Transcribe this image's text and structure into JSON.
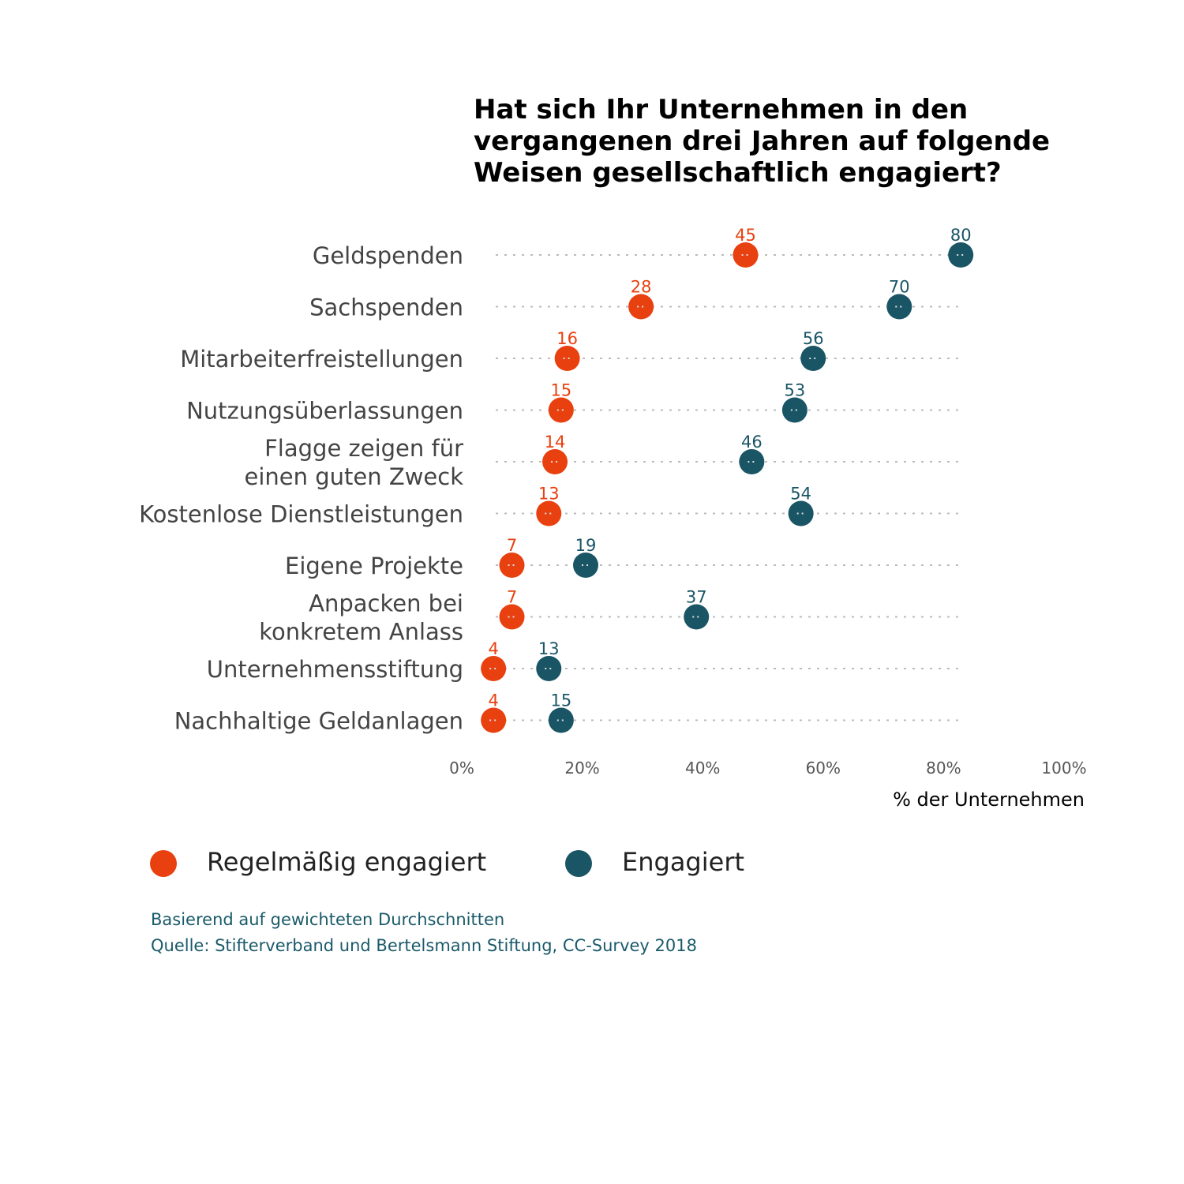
{
  "chart_data": {
    "type": "scatter",
    "subtype": "dot-plot",
    "title": [
      "Hat sich Ihr Unternehmen in den",
      "vergangenen drei Jahren auf folgende",
      "Weisen gesellschaftlich engagiert?"
    ],
    "categories": [
      [
        "Geldspenden"
      ],
      [
        "Sachspenden"
      ],
      [
        "Mitarbeiterfreistellungen"
      ],
      [
        "Nutzungsüberlassungen"
      ],
      [
        "Flagge zeigen für",
        "einen guten Zweck"
      ],
      [
        "Kostenlose Dienstleistungen"
      ],
      [
        "Eigene Projekte"
      ],
      [
        "Anpacken  bei",
        "konkretem Anlass"
      ],
      [
        "Unternehmensstiftung"
      ],
      [
        "Nachhaltige Geldanlagen"
      ]
    ],
    "series": [
      {
        "name": "Regelmäßig engagiert",
        "color": "#e8400f",
        "values": [
          45,
          28,
          16,
          15,
          14,
          13,
          7,
          7,
          4,
          4
        ]
      },
      {
        "name": "Engagiert",
        "color": "#1a5566",
        "values": [
          80,
          70,
          56,
          53,
          46,
          54,
          19,
          37,
          13,
          15
        ]
      }
    ],
    "xlabel": "% der Unternehmen",
    "xlim": [
      0,
      100
    ],
    "xticks": [
      "0%",
      "20%",
      "40%",
      "60%",
      "80%",
      "100%"
    ],
    "grid": "dotted horizontal guide per category",
    "legend": "bottom-left"
  },
  "notes": [
    "Basierend auf gewichteten Durchschnitten",
    "Quelle: Stifterverband und Bertelsmann Stiftung, CC-Survey 2018"
  ]
}
